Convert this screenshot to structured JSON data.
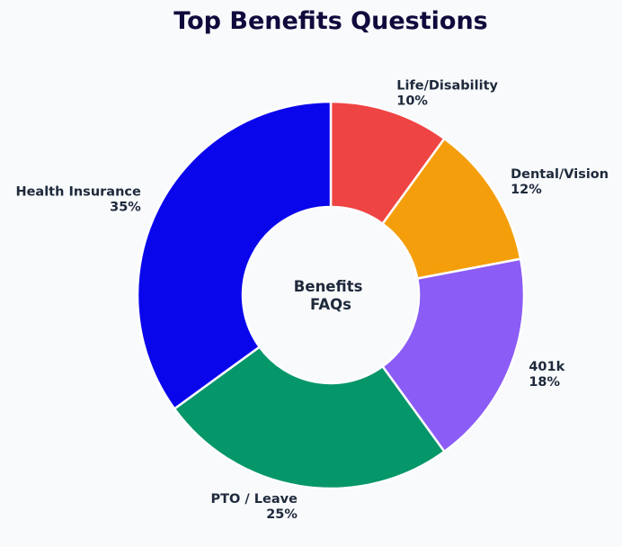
{
  "chart_data": {
    "type": "pie",
    "variant": "donut",
    "title": "Top Benefits Questions",
    "center_label": [
      "Benefits",
      "FAQs"
    ],
    "categories": [
      "Life/Disability",
      "Dental/Vision",
      "401k",
      "PTO / Leave",
      "Health Insurance"
    ],
    "values": [
      10,
      12,
      18,
      25,
      35
    ],
    "value_labels": [
      "10%",
      "12%",
      "18%",
      "25%",
      "35%"
    ],
    "colors": [
      "#ef4444",
      "#f59e0b",
      "#8b5cf6",
      "#059669",
      "#0a06ec"
    ],
    "start_angle": "12 o'clock",
    "direction": "clockwise",
    "legend": "none"
  }
}
